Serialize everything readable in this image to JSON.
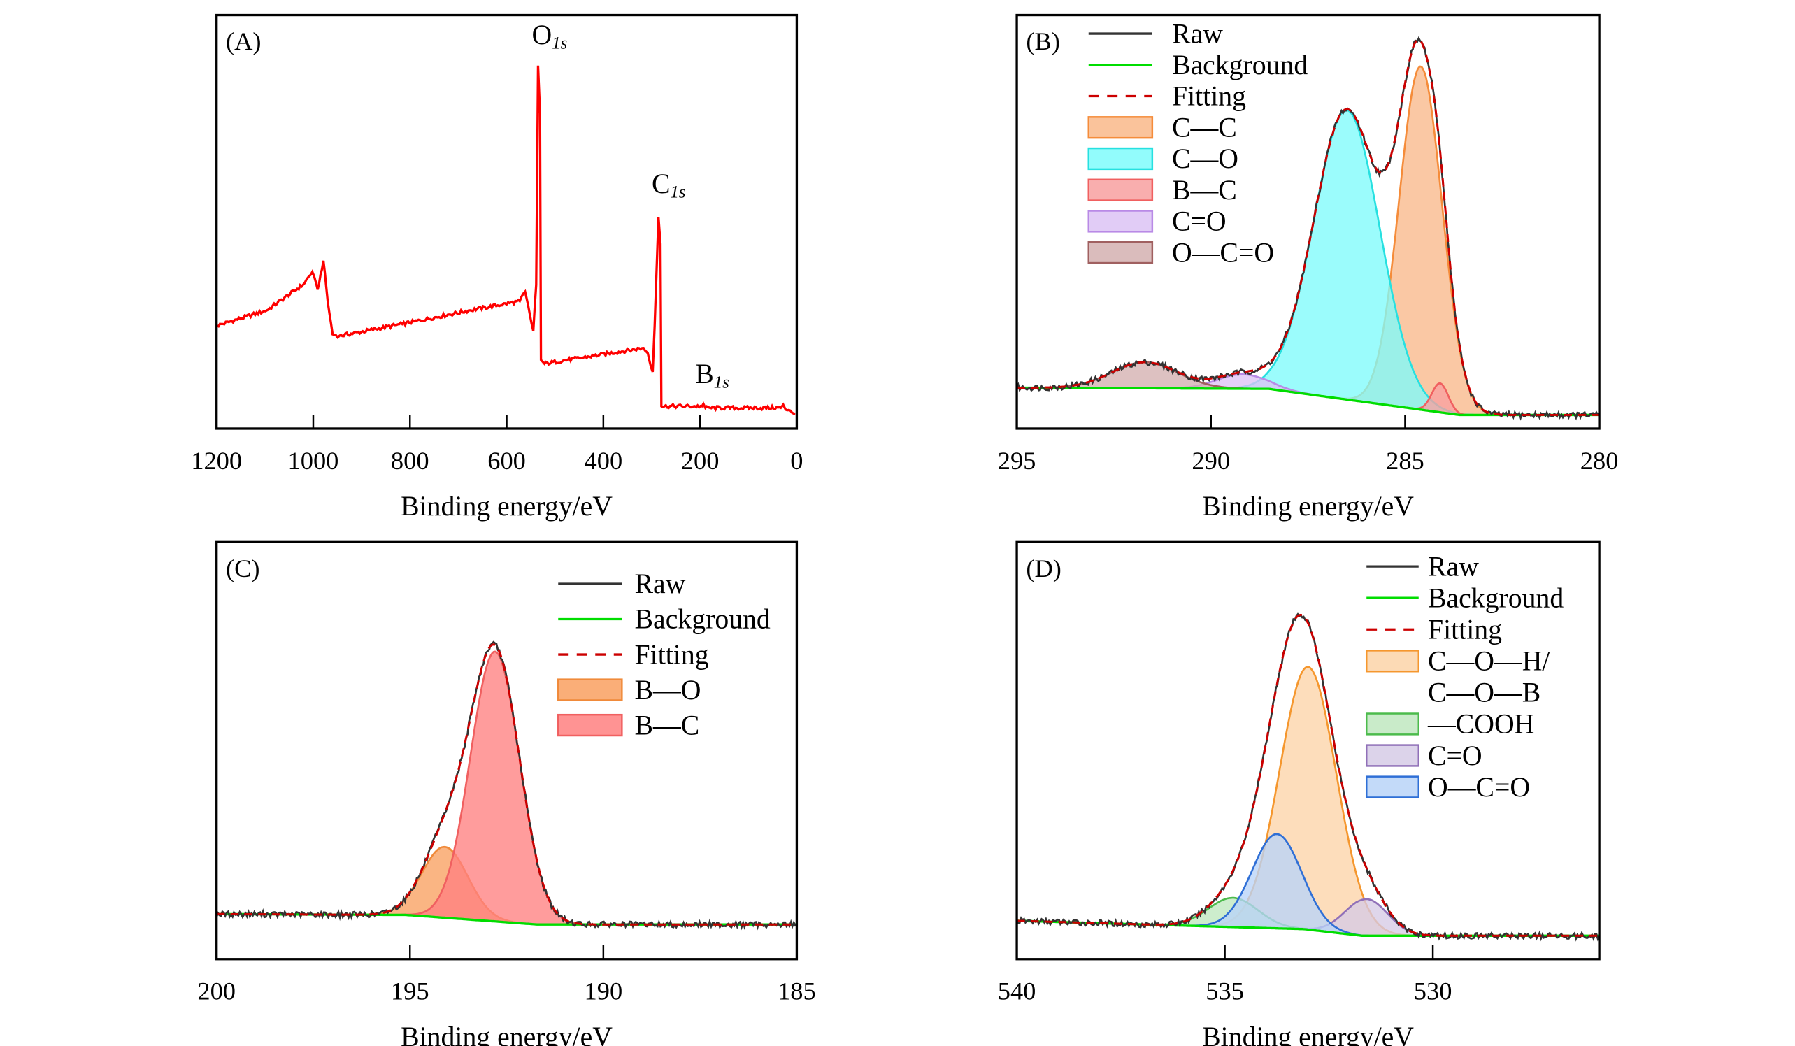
{
  "chart_data": [
    {
      "type": "line",
      "panel_label": "(A)",
      "xlabel": "Binding energy/eV",
      "ylabel": "",
      "xlim": [
        1200,
        0
      ],
      "ylim": [
        0,
        100
      ],
      "xticks": [
        1200,
        1000,
        800,
        600,
        400,
        200,
        0
      ],
      "grid": false,
      "series": [
        {
          "color": "#ff0000",
          "points": [
            [
              1199,
              24.9
            ],
            [
              1096,
              28.6
            ],
            [
              1021,
              34.8
            ],
            [
              1002,
              37.9
            ],
            [
              991,
              33.6
            ],
            [
              979,
              40.6
            ],
            [
              970,
              30.7
            ],
            [
              960,
              22.8
            ],
            [
              946,
              22.4
            ],
            [
              816,
              25.3
            ],
            [
              676,
              28.6
            ],
            [
              573,
              30.8
            ],
            [
              562,
              33.1
            ],
            [
              545,
              23.6
            ],
            [
              539,
              34.8
            ],
            [
              535,
              87.8
            ],
            [
              531,
              76.2
            ],
            [
              529,
              16.6
            ],
            [
              522,
              15.7
            ],
            [
              317,
              19.5
            ],
            [
              308,
              18.2
            ],
            [
              298,
              13.7
            ],
            [
              294,
              24.9
            ],
            [
              286,
              51.2
            ],
            [
              282,
              44.7
            ],
            [
              280,
              5.4
            ],
            [
              196,
              5.4
            ],
            [
              193,
              6.0
            ],
            [
              189,
              5.0
            ],
            [
              33,
              5.0
            ],
            [
              28,
              5.8
            ],
            [
              23,
              4.6
            ],
            [
              3,
              3.6
            ]
          ]
        }
      ],
      "annotations": [
        {
          "main": "O",
          "sub": "1s",
          "x": 548,
          "y": 93
        },
        {
          "main": "C",
          "sub": "1s",
          "x": 300,
          "y": 57
        },
        {
          "main": "B",
          "sub": "1s",
          "x": 210,
          "y": 11
        }
      ]
    },
    {
      "type": "area",
      "panel_label": "(B)",
      "xlabel": "Binding energy/eV",
      "ylabel": "",
      "xlim": [
        295,
        280
      ],
      "ylim": [
        0,
        100
      ],
      "xticks": [
        295,
        290,
        285,
        280
      ],
      "grid": false,
      "legend": "top-left",
      "raw": {
        "name": "Raw",
        "color": "#333333"
      },
      "background": {
        "name": "Background",
        "color": "#00dd00",
        "points": [
          [
            295,
            9.9
          ],
          [
            288.5,
            9.6
          ],
          [
            283.6,
            3.3
          ],
          [
            280,
            3.3
          ]
        ]
      },
      "fitting": {
        "name": "Fitting",
        "color": "#cc0000"
      },
      "components": [
        {
          "name": [
            "C—C"
          ],
          "center": 284.6,
          "fwhm": 1.3,
          "height": 83,
          "fill": "#f9b98a",
          "stroke": "#f58c3a"
        },
        {
          "name": [
            "C—O"
          ],
          "center": 286.5,
          "fwhm": 2.0,
          "height": 70,
          "fill": "#7ffbfb",
          "stroke": "#27e0e0"
        },
        {
          "name": [
            "B—C"
          ],
          "center": 284.1,
          "fwhm": 0.5,
          "height": 7,
          "fill": "#f8a0a0",
          "stroke": "#f06060"
        },
        {
          "name": [
            "C=O"
          ],
          "center": 289.2,
          "fwhm": 1.5,
          "height": 3.5,
          "fill": "#dcc3f5",
          "stroke": "#b98ae6"
        },
        {
          "name": [
            "O—C=O"
          ],
          "center": 291.7,
          "fwhm": 2.0,
          "height": 6.3,
          "fill": "#d3b0b0",
          "stroke": "#a06060"
        }
      ]
    },
    {
      "type": "area",
      "panel_label": "(C)",
      "xlabel": "Binding energy/eV",
      "ylabel": "",
      "xlim": [
        200,
        185
      ],
      "ylim": [
        0,
        100
      ],
      "xticks": [
        200,
        195,
        190,
        185
      ],
      "grid": false,
      "legend": "top-right",
      "raw": {
        "name": "Raw",
        "color": "#333333"
      },
      "background": {
        "name": "Background",
        "color": "#00dd00",
        "points": [
          [
            200,
            10.8
          ],
          [
            195.1,
            10.6
          ],
          [
            191.7,
            8.3
          ],
          [
            185,
            8.3
          ]
        ]
      },
      "fitting": {
        "name": "Fitting",
        "color": "#cc0000"
      },
      "components": [
        {
          "name": [
            "B—O"
          ],
          "center": 194.1,
          "fwhm": 1.4,
          "height": 17,
          "fill": "#f9a060",
          "stroke": "#f08a3a"
        },
        {
          "name": [
            "B—C"
          ],
          "center": 192.8,
          "fwhm": 1.5,
          "height": 64.7,
          "fill": "#ff8080",
          "stroke": "#f06060"
        }
      ]
    },
    {
      "type": "area",
      "panel_label": "(D)",
      "xlabel": "Binding energy/eV",
      "ylabel": "",
      "xlim": [
        540,
        526
      ],
      "ylim": [
        0,
        100
      ],
      "xticks": [
        540,
        535,
        530
      ],
      "grid": false,
      "legend": "top-right",
      "raw": {
        "name": "Raw",
        "color": "#333333"
      },
      "background": {
        "name": "Background",
        "color": "#00dd00",
        "points": [
          [
            540,
            9.2
          ],
          [
            533.1,
            7.2
          ],
          [
            531.7,
            5.6
          ],
          [
            526,
            5.6
          ]
        ]
      },
      "fitting": {
        "name": "Fitting",
        "color": "#cc0000"
      },
      "components": [
        {
          "name": [
            "C—O—H/",
            "C—O—B"
          ],
          "center": 533.0,
          "fwhm": 1.6,
          "height": 63,
          "fill": "#fcd3a8",
          "stroke": "#f5972e"
        },
        {
          "name": [
            "—COOH"
          ],
          "center": 534.8,
          "fwhm": 1.4,
          "height": 7,
          "fill": "#bfe8bf",
          "stroke": "#4cbb4c"
        },
        {
          "name": [
            "C=O"
          ],
          "center": 531.6,
          "fwhm": 1.2,
          "height": 8.8,
          "fill": "#d6cbe6",
          "stroke": "#9070b8"
        },
        {
          "name": [
            "O—C=O"
          ],
          "center": 533.75,
          "fwhm": 1.4,
          "height": 22.6,
          "fill": "#b8d4f8",
          "stroke": "#2f6fd6"
        }
      ]
    }
  ]
}
